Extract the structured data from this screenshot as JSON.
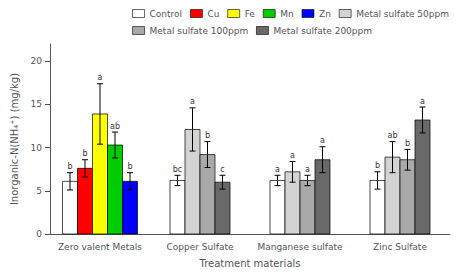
{
  "chart_data": {
    "type": "bar",
    "xlabel": "Treatment materials",
    "ylabel": "Inorganic-N(NH₄⁺) (mg/kg)",
    "categories": [
      "Zero valent Metals",
      "Copper Sulfate",
      "Manganese sulfate",
      "Zinc Sulfate"
    ],
    "series": [
      {
        "name": "Control",
        "color": "#ffffff",
        "values": [
          6.1,
          6.2,
          6.2,
          6.2
        ],
        "errors": [
          1.0,
          0.6,
          0.6,
          1.0
        ],
        "annotations": [
          "b",
          "bc",
          "a",
          "b"
        ]
      },
      {
        "name": "Cu",
        "color": "#ff0000",
        "values": [
          7.6,
          null,
          null,
          null
        ],
        "errors": [
          1.0,
          null,
          null,
          null
        ],
        "annotations": [
          "b",
          null,
          null,
          null
        ]
      },
      {
        "name": "Fe",
        "color": "#ffff00",
        "values": [
          13.9,
          null,
          null,
          null
        ],
        "errors": [
          3.5,
          null,
          null,
          null
        ],
        "annotations": [
          "a",
          null,
          null,
          null
        ]
      },
      {
        "name": "Mn",
        "color": "#00cc00",
        "values": [
          10.3,
          null,
          null,
          null
        ],
        "errors": [
          1.5,
          null,
          null,
          null
        ],
        "annotations": [
          "ab",
          null,
          null,
          null
        ]
      },
      {
        "name": "Zn",
        "color": "#0000ff",
        "values": [
          6.1,
          null,
          null,
          null
        ],
        "errors": [
          1.0,
          null,
          null,
          null
        ],
        "annotations": [
          "b",
          null,
          null,
          null
        ]
      },
      {
        "name": "Metal sulfate 50ppm",
        "color": "#d3d3d3",
        "values": [
          null,
          12.1,
          7.2,
          8.9
        ],
        "errors": [
          null,
          2.5,
          1.2,
          1.8
        ],
        "annotations": [
          null,
          "a",
          "a",
          "ab"
        ]
      },
      {
        "name": "Metal sulfate 100ppm",
        "color": "#a9a9a9",
        "values": [
          null,
          9.2,
          6.2,
          8.6
        ],
        "errors": [
          null,
          1.5,
          0.6,
          1.2
        ],
        "annotations": [
          null,
          "b",
          "a",
          "b"
        ]
      },
      {
        "name": "Metal sulfate 200ppm",
        "color": "#696969",
        "values": [
          null,
          6.0,
          8.6,
          13.2
        ],
        "errors": [
          null,
          0.8,
          1.5,
          1.5
        ],
        "annotations": [
          null,
          "c",
          "a",
          "a"
        ]
      }
    ],
    "ylim": [
      0,
      22
    ],
    "yticks": [
      0,
      5,
      10,
      15,
      20
    ],
    "grid": false,
    "legend": "upper right"
  }
}
